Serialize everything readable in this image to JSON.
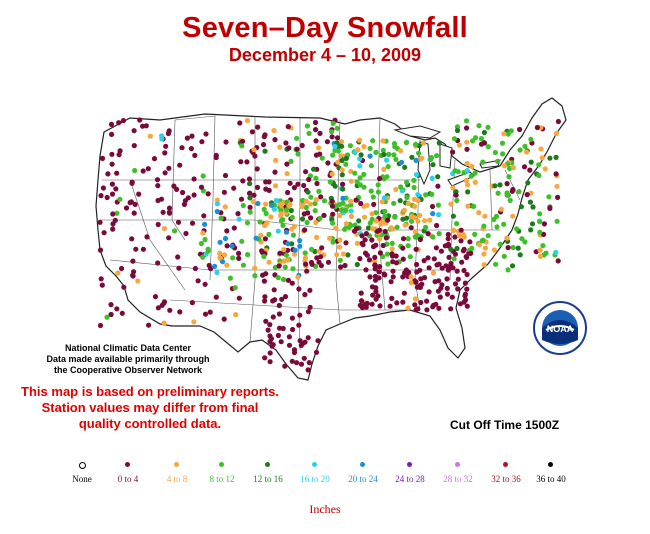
{
  "title": "Seven–Day Snowfall",
  "subtitle": "December 4 – 10, 2009",
  "credit": {
    "line1": "National Climatic Data Center",
    "line2": "Data made available primarily through",
    "line3": "the Cooperative Observer Network"
  },
  "warning": {
    "line1": "This map is based on preliminary reports.",
    "line2": "Station values may differ from final",
    "line3": "quality controlled data."
  },
  "cutoff": "Cut Off Time 1500Z",
  "units": "Inches",
  "noaa_logo": "NOAA",
  "legend": [
    {
      "label": "None",
      "color": "#ffffff",
      "outline": "#000000",
      "text_color": "#000000"
    },
    {
      "label": "0 to 4",
      "color": "#7a0a3a",
      "text_color": "#7a0a3a"
    },
    {
      "label": "4 to 8",
      "color": "#f7a640",
      "text_color": "#f7a640"
    },
    {
      "label": "8 to 12",
      "color": "#3dbf2a",
      "text_color": "#3dbf2a"
    },
    {
      "label": "12 to 16",
      "color": "#1f7a1f",
      "text_color": "#1f7a1f"
    },
    {
      "label": "16 to 20",
      "color": "#2ed0e8",
      "text_color": "#2ed0e8"
    },
    {
      "label": "20 to 24",
      "color": "#1a8fd8",
      "text_color": "#1a8fd8"
    },
    {
      "label": "24 to 28",
      "color": "#7a1fa8",
      "text_color": "#7a1fa8"
    },
    {
      "label": "28 to 32",
      "color": "#d070e0",
      "text_color": "#d070e0"
    },
    {
      "label": "32 to 36",
      "color": "#b01020",
      "text_color": "#b01020"
    },
    {
      "label": "36 to 40",
      "color": "#000000",
      "text_color": "#000000"
    }
  ]
}
